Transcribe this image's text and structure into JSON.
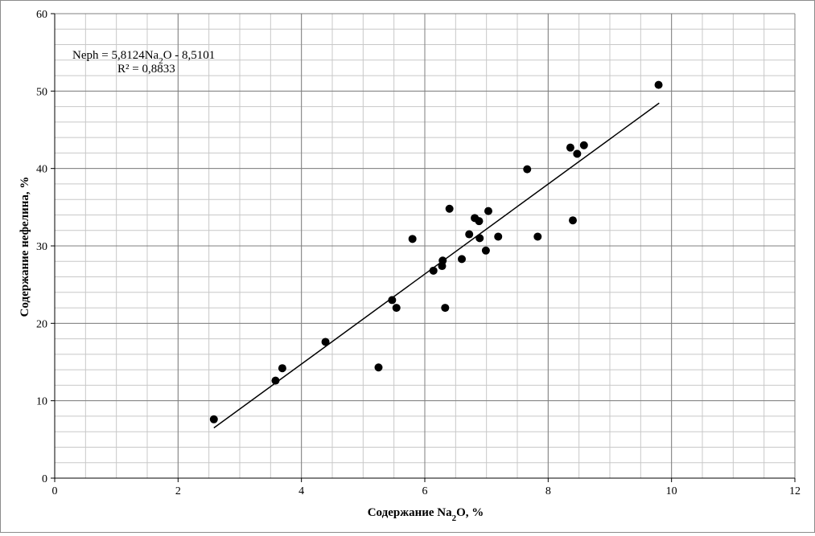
{
  "chart_data": {
    "type": "scatter",
    "xlabel": "Содержание Na2O, %",
    "ylabel": "Содержание нефелина, %",
    "xlim": [
      0,
      12
    ],
    "ylim": [
      0,
      60
    ],
    "xticks": [
      0,
      2,
      4,
      6,
      8,
      10,
      12
    ],
    "yticks": [
      0,
      10,
      20,
      30,
      40,
      50,
      60
    ],
    "x_major_step": 2,
    "y_major_step": 10,
    "x_minor_step": 0.5,
    "y_minor_step": 2,
    "grid": true,
    "trendline": {
      "type": "linear",
      "slope": 5.8124,
      "intercept": -8.5101,
      "x_range": [
        2.58,
        9.8
      ]
    },
    "annotations": {
      "equation": "Neph = 5,8124Na2O - 8,5101",
      "r_squared": "R² = 0,8833"
    },
    "points": [
      {
        "x": 2.58,
        "y": 7.6
      },
      {
        "x": 3.58,
        "y": 12.6
      },
      {
        "x": 3.69,
        "y": 14.2
      },
      {
        "x": 4.39,
        "y": 17.6
      },
      {
        "x": 5.25,
        "y": 14.3
      },
      {
        "x": 5.47,
        "y": 23.0
      },
      {
        "x": 5.54,
        "y": 22.0
      },
      {
        "x": 5.8,
        "y": 30.9
      },
      {
        "x": 6.14,
        "y": 26.8
      },
      {
        "x": 6.28,
        "y": 27.4
      },
      {
        "x": 6.29,
        "y": 28.1
      },
      {
        "x": 6.33,
        "y": 22.0
      },
      {
        "x": 6.4,
        "y": 34.8
      },
      {
        "x": 6.6,
        "y": 28.3
      },
      {
        "x": 6.72,
        "y": 31.5
      },
      {
        "x": 6.81,
        "y": 33.6
      },
      {
        "x": 6.88,
        "y": 33.2
      },
      {
        "x": 6.89,
        "y": 31.0
      },
      {
        "x": 6.99,
        "y": 29.4
      },
      {
        "x": 7.03,
        "y": 34.5
      },
      {
        "x": 7.19,
        "y": 31.2
      },
      {
        "x": 7.66,
        "y": 39.9
      },
      {
        "x": 7.83,
        "y": 31.2
      },
      {
        "x": 8.36,
        "y": 42.7
      },
      {
        "x": 8.4,
        "y": 33.3
      },
      {
        "x": 8.47,
        "y": 41.9
      },
      {
        "x": 8.58,
        "y": 43.0
      },
      {
        "x": 9.79,
        "y": 50.8
      }
    ]
  }
}
